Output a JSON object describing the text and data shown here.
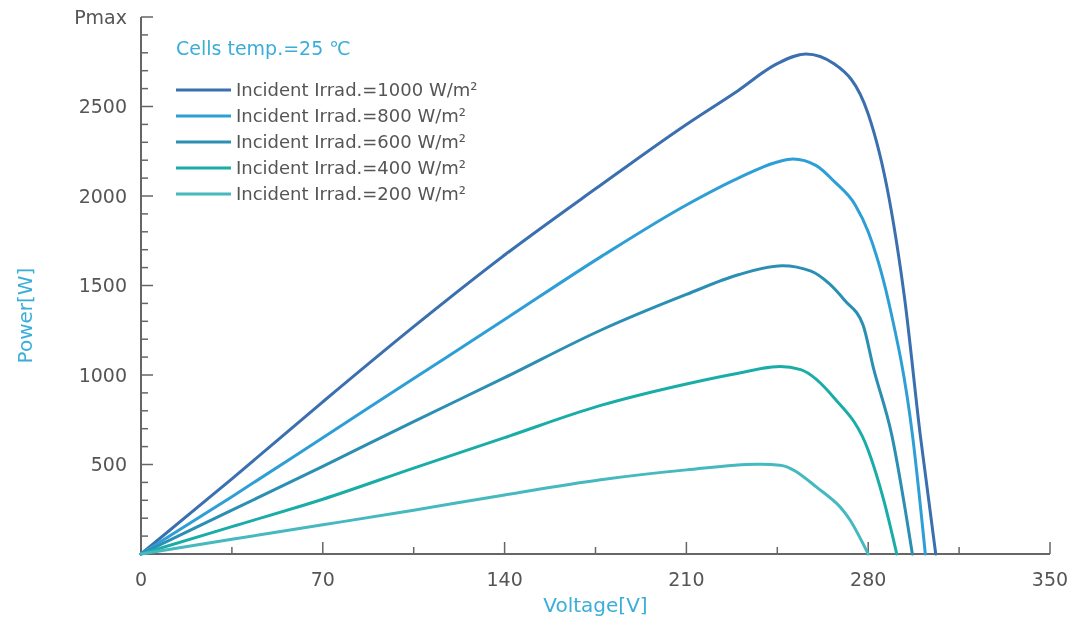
{
  "chart_data": {
    "type": "line",
    "xlabel": "Voltage[V]",
    "ylabel": "Power[W]",
    "legend_title": "Cells temp.=25 ℃",
    "legend": "top left",
    "marker": "none",
    "line_style": "solid",
    "grid": false,
    "xlim": [
      0,
      350
    ],
    "ylim": [
      0,
      3000
    ],
    "xticks": [
      0,
      {
        "value": 35,
        "label": null
      },
      70,
      {
        "value": 105,
        "label": null
      },
      140,
      {
        "value": 175,
        "label": null
      },
      210,
      {
        "value": 245,
        "label": null
      },
      280,
      {
        "value": 315,
        "label": null
      },
      350
    ],
    "yticks": [
      {
        "value": 100,
        "label": null
      },
      {
        "value": 200,
        "label": null
      },
      {
        "value": 300,
        "label": null
      },
      {
        "value": 400,
        "label": null
      },
      500,
      {
        "value": 600,
        "label": null
      },
      {
        "value": 700,
        "label": null
      },
      {
        "value": 800,
        "label": null
      },
      {
        "value": 900,
        "label": null
      },
      1000,
      {
        "value": 1100,
        "label": null
      },
      {
        "value": 1200,
        "label": null
      },
      {
        "value": 1300,
        "label": null
      },
      {
        "value": 1400,
        "label": null
      },
      1500,
      {
        "value": 1600,
        "label": null
      },
      {
        "value": 1700,
        "label": null
      },
      {
        "value": 1800,
        "label": null
      },
      {
        "value": 1900,
        "label": null
      },
      2000,
      {
        "value": 2100,
        "label": null
      },
      {
        "value": 2200,
        "label": null
      },
      {
        "value": 2300,
        "label": null
      },
      {
        "value": 2400,
        "label": null
      },
      2500,
      {
        "value": 2600,
        "label": null
      },
      {
        "value": 2700,
        "label": null
      },
      {
        "value": 2800,
        "label": null
      },
      {
        "value": 2900,
        "label": null
      },
      {
        "value": 3000,
        "label": "Pmax"
      }
    ],
    "series": [
      {
        "name": "Incident Irrad.=1000 W/m²",
        "color": "#3a6fb0",
        "x": [
          0,
          35,
          70,
          105,
          140,
          175,
          210,
          230,
          245,
          256,
          267,
          280,
          288,
          294,
          300,
          306
        ],
        "values": [
          0,
          420,
          850,
          1270,
          1670,
          2040,
          2400,
          2590,
          2740,
          2793,
          2737,
          2458,
          1990,
          1430,
          670,
          0
        ]
      },
      {
        "name": "Incident Irrad.=800 W/m²",
        "color": "#2e9fd6",
        "x": [
          0,
          35,
          70,
          105,
          140,
          177,
          210,
          230,
          245,
          251,
          260,
          267,
          275,
          280,
          288,
          297,
          302
        ],
        "values": [
          0,
          320,
          650,
          980,
          1310,
          1660,
          1950,
          2100,
          2190,
          2207,
          2170,
          2080,
          1950,
          1800,
          1400,
          670,
          0
        ]
      },
      {
        "name": "Incident Irrad.=600 W/m²",
        "color": "#2b8fb3",
        "x": [
          0,
          35,
          70,
          105,
          140,
          177,
          210,
          230,
          247,
          258,
          265,
          271,
          278,
          282,
          289,
          297
        ],
        "values": [
          0,
          245,
          490,
          740,
          985,
          1250,
          1450,
          1560,
          1611,
          1580,
          1510,
          1416,
          1280,
          1040,
          670,
          0
        ]
      },
      {
        "name": "Incident Irrad.=400 W/m²",
        "color": "#1aada8",
        "x": [
          0,
          35,
          70,
          105,
          140,
          177,
          210,
          230,
          246,
          254,
          267,
          280,
          286,
          291
        ],
        "values": [
          0,
          153,
          306,
          480,
          650,
          830,
          950,
          1010,
          1048,
          1030,
          870,
          580,
          300,
          0
        ]
      },
      {
        "name": "Incident Irrad.=200 W/m²",
        "color": "#45b8c0",
        "x": [
          0,
          35,
          70,
          105,
          140,
          177,
          210,
          237,
          246,
          260,
          273,
          280
        ],
        "values": [
          0,
          82,
          163,
          245,
          330,
          415,
          470,
          502,
          496,
          375,
          190,
          0
        ]
      }
    ]
  }
}
